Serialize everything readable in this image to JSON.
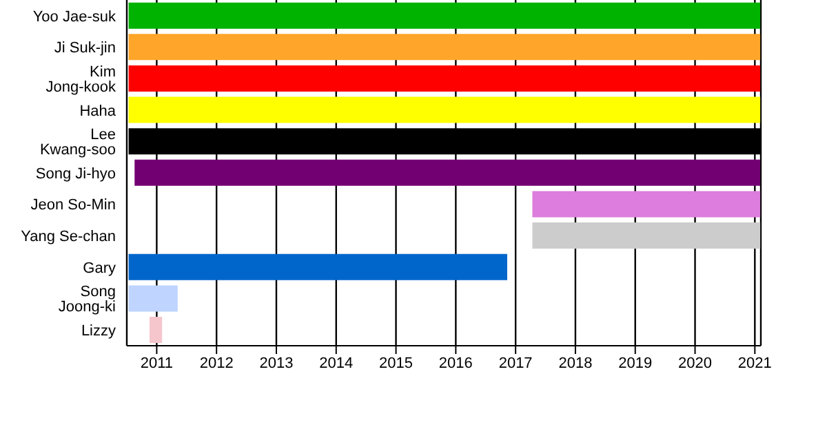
{
  "chart_data": {
    "type": "bar",
    "orientation": "horizontal",
    "categories": [
      "Yoo Jae-suk",
      "Ji Suk-jin",
      "Kim Jong-kook",
      "Haha",
      "Lee Kwang-soo",
      "Song Ji-hyo",
      "Jeon So-Min",
      "Yang Se-chan",
      "Gary",
      "Song Joong-ki",
      "Lizzy"
    ],
    "base": [
      2010.53,
      2010.53,
      2010.53,
      2010.53,
      2010.53,
      2010.63,
      2017.28,
      2017.28,
      2010.53,
      2010.53,
      2010.88
    ],
    "values": [
      10.56,
      10.56,
      10.56,
      10.56,
      10.56,
      10.46,
      3.81,
      3.81,
      6.33,
      0.82,
      0.21
    ],
    "colors": [
      "#00b300",
      "#ffa52a",
      "#ff0000",
      "#ffff00",
      "#000000",
      "#730073",
      "#dd7ddd",
      "#cccccc",
      "#0066cc",
      "#bfd4ff",
      "#f5c6cc"
    ],
    "xlim": [
      2010.5,
      2021.1
    ],
    "xticks": [
      2011,
      2012,
      2013,
      2014,
      2015,
      2016,
      2017,
      2018,
      2019,
      2020,
      2021
    ],
    "grid": "x",
    "legend": false
  }
}
